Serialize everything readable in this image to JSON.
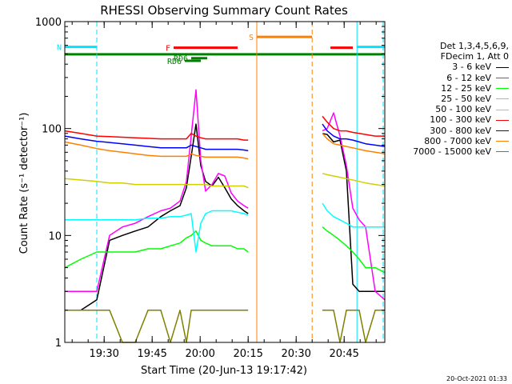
{
  "chart_data": {
    "type": "line",
    "title": "RHESSI Observing Summary Count Rates",
    "xlabel": "Start Time (20-Jun-13 19:17:42)",
    "ylabel": "Count Rate (s⁻¹ detector⁻¹)",
    "y_scale": "log",
    "ylim": [
      1,
      1000
    ],
    "xlim_minutes_after_start": [
      0,
      100
    ],
    "x_ticks": [
      {
        "label": "19:30",
        "t": 12.3
      },
      {
        "label": "19:45",
        "t": 27.3
      },
      {
        "label": "20:00",
        "t": 42.3
      },
      {
        "label": "20:15",
        "t": 57.3
      },
      {
        "label": "20:30",
        "t": 72.3
      },
      {
        "label": "20:45",
        "t": 87.3
      }
    ],
    "y_ticks": [
      {
        "label": "1",
        "v": 1
      },
      {
        "label": "10",
        "v": 10
      },
      {
        "label": "100",
        "v": 100
      },
      {
        "label": "1000",
        "v": 1000
      }
    ],
    "legend_header": [
      "Det 1,3,4,5,6,9,",
      "FDecim 1, Att 0"
    ],
    "series": [
      {
        "name": "3 - 6 keV",
        "color": "#000000",
        "t": [
          0,
          5,
          10,
          14,
          18,
          22,
          26,
          30,
          33,
          36,
          38,
          39.5,
          41,
          42.5,
          44,
          46,
          48,
          50,
          52,
          54,
          56,
          57.3,
          80,
          80.5,
          82,
          84,
          86,
          88,
          90,
          92,
          94,
          97,
          100
        ],
        "v": [
          2,
          2,
          2.5,
          9,
          10,
          11,
          12,
          15,
          17,
          19,
          28,
          55,
          110,
          45,
          32,
          29,
          35,
          28,
          22,
          19,
          17,
          16,
          null,
          90,
          88,
          75,
          78,
          40,
          3.5,
          3,
          3,
          3,
          3
        ]
      },
      {
        "name": "6 - 12 keV",
        "color": "#ff00ff",
        "t": [
          0,
          5,
          10,
          14,
          18,
          22,
          26,
          30,
          33,
          36,
          38,
          39.5,
          41,
          42.5,
          44,
          46,
          48,
          50,
          52,
          54,
          56,
          57.3,
          80,
          80.5,
          82,
          84,
          86,
          88,
          90,
          92,
          94,
          97,
          100
        ],
        "v": [
          3,
          3,
          3,
          10,
          12,
          13,
          15,
          17,
          18,
          21,
          32,
          85,
          230,
          50,
          26,
          30,
          38,
          36,
          25,
          21,
          19,
          18,
          null,
          95,
          100,
          140,
          85,
          45,
          18,
          14,
          12,
          3,
          2.5
        ]
      },
      {
        "name": "12 - 25 keV",
        "color": "#00ff00",
        "t": [
          0,
          5,
          10,
          14,
          18,
          22,
          26,
          30,
          33,
          36,
          38,
          39.5,
          41,
          42.5,
          44,
          46,
          48,
          50,
          52,
          54,
          56,
          57.3,
          80,
          80.5,
          82,
          84,
          86,
          88,
          90,
          92,
          94,
          97,
          100
        ],
        "v": [
          5,
          6,
          7,
          7,
          7,
          7,
          7.5,
          7.5,
          8,
          8.5,
          9.5,
          10,
          11,
          9,
          8.5,
          8,
          8,
          8,
          8,
          7.5,
          7.5,
          7,
          null,
          12,
          11,
          10,
          9,
          8,
          7,
          6,
          5,
          5,
          4.5
        ]
      },
      {
        "name": "25 - 50 keV",
        "color": "#00ffff",
        "t": [
          0,
          5,
          10,
          14,
          18,
          22,
          26,
          30,
          33,
          36,
          38,
          39.5,
          41,
          42.5,
          44,
          46,
          48,
          50,
          52,
          54,
          56,
          57.3,
          80,
          80.5,
          82,
          84,
          86,
          88,
          90,
          92,
          94,
          97,
          100
        ],
        "v": [
          14,
          14,
          14,
          14,
          14,
          14,
          14.5,
          14.5,
          15,
          15,
          15.5,
          16,
          7,
          13,
          16,
          17,
          17,
          17,
          17,
          16.5,
          16,
          15.5,
          null,
          20,
          17,
          15,
          14,
          13,
          12,
          12,
          12,
          12,
          12
        ]
      },
      {
        "name": "50 - 100 keV",
        "color": "#d0d000",
        "t": [
          0,
          5,
          10,
          14,
          18,
          22,
          26,
          30,
          33,
          36,
          38,
          39.5,
          41,
          42.5,
          44,
          46,
          48,
          50,
          52,
          54,
          56,
          57.3,
          80,
          80.5,
          82,
          84,
          86,
          88,
          90,
          92,
          94,
          97,
          100
        ],
        "v": [
          34,
          33,
          32,
          31,
          31,
          30,
          30,
          30,
          30,
          30,
          30,
          30,
          30,
          30,
          30,
          29,
          29,
          29,
          29,
          29,
          29,
          28,
          null,
          38,
          37,
          36,
          35,
          34,
          33,
          32,
          31,
          30,
          29
        ]
      },
      {
        "name": "100 - 300 keV",
        "color": "#ff0000",
        "t": [
          0,
          5,
          10,
          14,
          18,
          22,
          26,
          30,
          33,
          36,
          38,
          39.5,
          41,
          42.5,
          44,
          46,
          48,
          50,
          52,
          54,
          56,
          57.3,
          80,
          80.5,
          82,
          84,
          86,
          88,
          90,
          92,
          94,
          97,
          100
        ],
        "v": [
          95,
          90,
          85,
          84,
          83,
          82,
          81,
          80,
          80,
          80,
          80,
          90,
          85,
          82,
          80,
          80,
          80,
          80,
          80,
          80,
          78,
          78,
          null,
          130,
          115,
          100,
          95,
          95,
          92,
          90,
          88,
          85,
          85
        ]
      },
      {
        "name": "300 - 800 keV",
        "color": "#0000ff",
        "t": [
          0,
          5,
          10,
          14,
          18,
          22,
          26,
          30,
          33,
          36,
          38,
          39.5,
          41,
          42.5,
          44,
          46,
          48,
          50,
          52,
          54,
          56,
          57.3,
          80,
          80.5,
          82,
          84,
          86,
          88,
          90,
          92,
          94,
          97,
          100
        ],
        "v": [
          85,
          80,
          76,
          74,
          72,
          70,
          68,
          66,
          66,
          66,
          66,
          70,
          68,
          66,
          64,
          64,
          64,
          64,
          64,
          64,
          63,
          62,
          null,
          110,
          95,
          85,
          80,
          80,
          78,
          75,
          72,
          70,
          68
        ]
      },
      {
        "name": "800 - 7000 keV",
        "color": "#ff8000",
        "t": [
          0,
          5,
          10,
          14,
          18,
          22,
          26,
          30,
          33,
          36,
          38,
          39.5,
          41,
          42.5,
          44,
          46,
          48,
          50,
          52,
          54,
          56,
          57.3,
          80,
          80.5,
          82,
          84,
          86,
          88,
          90,
          92,
          94,
          97,
          100
        ],
        "v": [
          75,
          70,
          65,
          62,
          60,
          58,
          56,
          55,
          55,
          55,
          55,
          58,
          56,
          55,
          54,
          54,
          54,
          54,
          54,
          54,
          53,
          52,
          null,
          90,
          80,
          72,
          70,
          68,
          66,
          64,
          62,
          60,
          58
        ]
      },
      {
        "name": "7000 - 15000 keV",
        "color": "#808000",
        "t": [
          0,
          5,
          10,
          14,
          18,
          22,
          26,
          30,
          33,
          36,
          38,
          39.5,
          41,
          42.5,
          44,
          46,
          48,
          50,
          52,
          54,
          56,
          57.3,
          80,
          80.5,
          82,
          84,
          86,
          88,
          90,
          92,
          94,
          97,
          100
        ],
        "v": [
          2,
          2,
          2,
          2,
          1,
          1,
          2,
          2,
          1,
          2,
          1,
          2,
          2,
          2,
          2,
          2,
          2,
          2,
          2,
          2,
          2,
          2,
          null,
          2,
          2,
          2,
          1,
          2,
          2,
          2,
          1,
          2,
          2
        ]
      }
    ],
    "flag_bars": [
      {
        "label": "N",
        "color": "#00e5ff",
        "y_value": 580,
        "segments": [
          [
            0,
            10
          ],
          [
            91.3,
            100
          ]
        ]
      },
      {
        "label": "S",
        "color": "#ff8000",
        "y_value": 720,
        "segments": [
          [
            60,
            77.3
          ]
        ]
      },
      {
        "label": "F",
        "color": "#ff0000",
        "y_value": 570,
        "segments": [
          [
            34,
            54
          ],
          [
            83,
            90
          ]
        ]
      },
      {
        "label": "",
        "color": "#008000",
        "y_value": 495,
        "segments": [
          [
            0,
            100
          ]
        ]
      },
      {
        "label": "RD6",
        "color": "#008000",
        "y_value": 430,
        "segments": [
          [
            37.5,
            42.5
          ]
        ]
      },
      {
        "label": "RD6",
        "color": "#008000",
        "y_value": 455,
        "segments": [
          [
            39.5,
            44.5
          ]
        ]
      }
    ],
    "vertical_markers": [
      {
        "t": 10,
        "color": "#00e5ff",
        "style": "dashed"
      },
      {
        "t": 60,
        "color": "#ff8000",
        "style": "solid"
      },
      {
        "t": 77.3,
        "color": "#ff8000",
        "style": "dashed"
      },
      {
        "t": 91.3,
        "color": "#00e5ff",
        "style": "solid"
      },
      {
        "t": 99.5,
        "color": "#00e5ff",
        "style": "dashed"
      }
    ]
  },
  "timestamp": "20-Oct-2021 01:33"
}
